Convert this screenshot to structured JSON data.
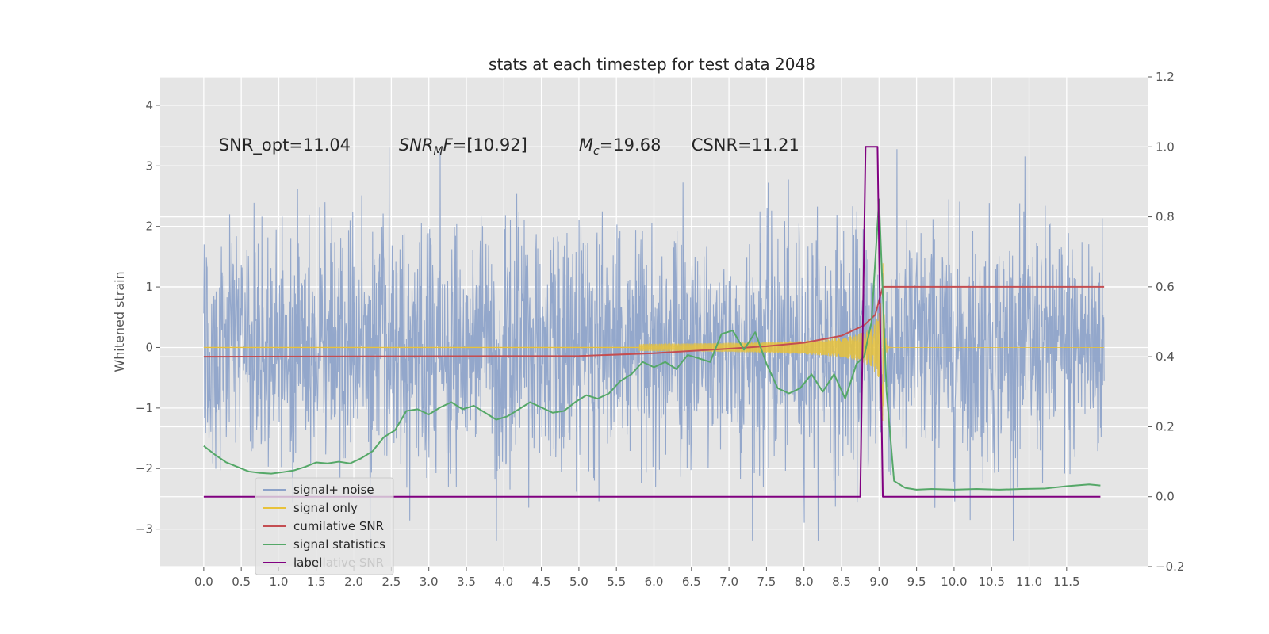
{
  "chart_data": {
    "type": "line",
    "title": "stats at each timestep for test data 2048",
    "ylabel": "Whitened strain",
    "xlim": [
      -0.58,
      12.58
    ],
    "ylim": [
      -3.62,
      4.47
    ],
    "y2lim": [
      -0.2,
      1.2
    ],
    "xticks": [
      "0.0",
      "0.5",
      "1.0",
      "1.5",
      "2.0",
      "2.5",
      "3.0",
      "3.5",
      "4.0",
      "4.5",
      "5.0",
      "5.5",
      "6.0",
      "6.5",
      "7.0",
      "7.5",
      "8.0",
      "8.5",
      "9.0",
      "9.5",
      "10.0",
      "10.5",
      "11.0",
      "11.5"
    ],
    "xtick_values": [
      0,
      0.5,
      1,
      1.5,
      2,
      2.5,
      3,
      3.5,
      4,
      4.5,
      5,
      5.5,
      6,
      6.5,
      7,
      7.5,
      8,
      8.5,
      9,
      9.5,
      10,
      10.5,
      11,
      11.5
    ],
    "yticks": [
      "−3",
      "−2",
      "−1",
      "0",
      "1",
      "2",
      "3",
      "4"
    ],
    "ytick_values": [
      -3,
      -2,
      -1,
      0,
      1,
      2,
      3,
      4
    ],
    "y2ticks": [
      "−0.2",
      "0.0",
      "0.2",
      "0.4",
      "0.6",
      "0.8",
      "1.0",
      "1.2"
    ],
    "y2tick_values": [
      -0.2,
      0,
      0.2,
      0.4,
      0.6,
      0.8,
      1.0,
      1.2
    ],
    "grid": true,
    "legend_placement": "lower-left",
    "annotations": [
      {
        "parts": [
          {
            "text": "SNR_opt=11.04",
            "italic": false
          }
        ],
        "x": 0.2,
        "y": 3.25
      },
      {
        "parts": [
          {
            "text": "SNR",
            "italic": true
          },
          {
            "text": "M",
            "italic": true,
            "sub": true
          },
          {
            "text": "F",
            "italic": true
          },
          {
            "text": "=[10.92]",
            "italic": false
          }
        ],
        "x": 2.6,
        "y": 3.25
      },
      {
        "parts": [
          {
            "text": "M",
            "italic": true
          },
          {
            "text": "c",
            "italic": true,
            "sub": true
          },
          {
            "text": "=19.68",
            "italic": false
          }
        ],
        "x": 5.0,
        "y": 3.25
      },
      {
        "parts": [
          {
            "text": "CSNR=11.21",
            "italic": false
          }
        ],
        "x": 6.5,
        "y": 3.25
      }
    ],
    "series": [
      {
        "name": "signal+ noise",
        "color": "#8ea3c9",
        "axis": "left",
        "kind": "noise",
        "x_range": [
          0,
          12
        ],
        "n_samples": 2400,
        "sigma": 1.0
      },
      {
        "name": "signal only",
        "color": "#e8c23a",
        "axis": "left",
        "kind": "chirp",
        "x_range": [
          0,
          12
        ],
        "merger": 9.05,
        "peak": 1.9
      },
      {
        "name": "cumilative SNR",
        "color": "#c44e52",
        "axis": "right",
        "x": [
          0,
          5.0,
          6.0,
          7.0,
          7.5,
          8.0,
          8.5,
          8.8,
          8.95,
          9.05,
          12.0
        ],
        "y": [
          0.4,
          0.402,
          0.41,
          0.423,
          0.43,
          0.44,
          0.46,
          0.49,
          0.52,
          0.6,
          0.6
        ]
      },
      {
        "name": "signal statistics",
        "color": "#55a868",
        "axis": "right",
        "x": [
          0.0,
          0.15,
          0.3,
          0.45,
          0.6,
          0.75,
          0.9,
          1.05,
          1.2,
          1.35,
          1.5,
          1.65,
          1.8,
          1.95,
          2.1,
          2.25,
          2.4,
          2.55,
          2.7,
          2.85,
          3.0,
          3.15,
          3.3,
          3.45,
          3.6,
          3.75,
          3.9,
          4.05,
          4.2,
          4.35,
          4.5,
          4.65,
          4.8,
          4.95,
          5.1,
          5.25,
          5.4,
          5.55,
          5.7,
          5.85,
          6.0,
          6.15,
          6.3,
          6.45,
          6.6,
          6.75,
          6.9,
          7.05,
          7.2,
          7.35,
          7.5,
          7.65,
          7.8,
          7.95,
          8.1,
          8.25,
          8.4,
          8.55,
          8.7,
          8.8,
          8.9,
          9.0,
          9.1,
          9.2,
          9.35,
          9.5,
          9.7,
          10.0,
          10.3,
          10.6,
          10.9,
          11.2,
          11.5,
          11.8,
          11.95
        ],
        "y": [
          0.145,
          0.12,
          0.098,
          0.085,
          0.072,
          0.068,
          0.066,
          0.07,
          0.075,
          0.085,
          0.098,
          0.095,
          0.1,
          0.095,
          0.11,
          0.13,
          0.17,
          0.19,
          0.245,
          0.25,
          0.235,
          0.255,
          0.27,
          0.25,
          0.26,
          0.24,
          0.22,
          0.23,
          0.25,
          0.27,
          0.255,
          0.24,
          0.245,
          0.27,
          0.29,
          0.28,
          0.295,
          0.33,
          0.35,
          0.385,
          0.37,
          0.385,
          0.365,
          0.405,
          0.395,
          0.385,
          0.465,
          0.475,
          0.42,
          0.47,
          0.38,
          0.31,
          0.295,
          0.31,
          0.35,
          0.3,
          0.35,
          0.28,
          0.38,
          0.4,
          0.5,
          0.85,
          0.3,
          0.045,
          0.025,
          0.02,
          0.022,
          0.02,
          0.022,
          0.02,
          0.022,
          0.023,
          0.03,
          0.035,
          0.032
        ]
      },
      {
        "name": "label",
        "color": "#800080",
        "axis": "right",
        "x": [
          0,
          8.75,
          8.82,
          8.98,
          9.05,
          11.95
        ],
        "y": [
          0.0,
          0.0,
          1.0,
          1.0,
          0.0,
          0.0
        ]
      }
    ],
    "legend_ghost_text": "cumilative SNR"
  }
}
